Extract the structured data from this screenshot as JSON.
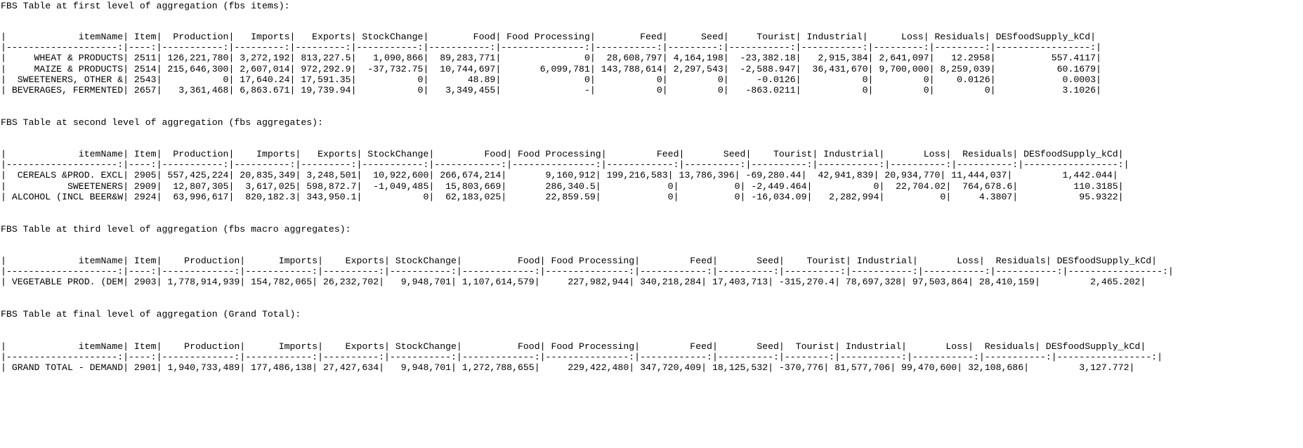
{
  "sections": [
    {
      "heading": "FBS Table at first level of aggregation (fbs items):",
      "header": "|             itemName| Item|  Production|   Imports|   Exports| StockChange|        Food| Food Processing|        Feed|      Seed|     Tourist| Industrial|      Loss| Residuals| DESfoodSupply_kCd|",
      "separator": "|--------------------:|----:|-----------:|---------:|---------:|-----------:|-----------:|---------------:|-----------:|---------:|-----------:|-----------:|---------:|---------:|-----------------:|",
      "rows": [
        "|     WHEAT & PRODUCTS| 2511| 126,221,780| 3,272,192| 813,227.5|   1,090,866|  89,283,771|               0|  28,608,797| 4,164,198|  -23,382.18|   2,915,384| 2,641,097|   12.2958|          557.4117|",
        "|     MAIZE & PRODUCTS| 2514| 215,646,300| 2,607,014| 972,292.9|  -37,732.75|  10,744,697|       6,099,781| 143,788,614| 2,297,543|  -2,588.947|  36,431,670| 9,700,000| 8,259,039|           60.1679|",
        "|  SWEETENERS, OTHER &| 2543|           0| 17,640.24| 17,591.35|           0|       48.89|               0|           0|         0|     -0.0126|           0|         0|    0.0126|            0.0003|",
        "| BEVERAGES, FERMENTED| 2657|   3,361,468| 6,863.671| 19,739.94|           0|   3,349,455|               -|           0|         0|   -863.0211|           0|         0|         0|            3.1026|"
      ]
    },
    {
      "heading": "FBS Table at second level of aggregation (fbs aggregates):",
      "header": "|             itemName| Item|  Production|    Imports|   Exports| StockChange|         Food| Food Processing|         Feed|       Seed|    Tourist| Industrial|       Loss|  Residuals| DESfoodSupply_kCd|",
      "separator": "|--------------------:|----:|-----------:|----------:|---------:|-----------:|------------:|---------------:|------------:|----------:|----------:|-----------:|----------:|----------:|-----------------:|",
      "rows": [
        "|  CEREALS &PROD. EXCL| 2905| 557,425,224| 20,835,349| 3,248,501|  10,922,600| 266,674,214|       9,160,912| 199,216,583| 13,786,396| -69,280.44|  42,941,839| 20,934,770| 11,444,037|         1,442.044|",
        "|           SWEETENERS| 2909|  12,807,305|  3,617,025| 598,872.7|  -1,049,485|  15,803,669|       286,340.5|            0|          0| -2,449.464|           0|  22,704.02|  764,678.6|          110.3185|",
        "| ALCOHOL (INCL BEER&W| 2924|  63,996,617|  820,182.3| 343,950.1|           0|  62,183,025|       22,859.59|            0|          0| -16,034.09|   2,282,994|          0|     4.3807|           95.9322|"
      ]
    },
    {
      "heading": "FBS Table at third level of aggregation (fbs macro aggregates):",
      "header": "|             itemName| Item|    Production|      Imports|    Exports| StockChange|          Food| Food Processing|         Feed|       Seed|    Tourist| Industrial|       Loss|  Residuals| DESfoodSupply_kCd|",
      "separator": "|--------------------:|----:|-------------:|------------:|----------:|-----------:|-------------:|---------------:|------------:|----------:|----------:|-----------:|-----------:|-----------:|-----------------:|",
      "rows": [
        "| VEGETABLE PROD. (DEM| 2903| 1,778,914,939| 154,782,065| 26,232,702|   9,948,701| 1,107,614,579|     227,982,944| 340,218,284| 17,403,713| -315,270.4| 78,697,328| 97,503,864| 28,410,159|         2,465.202|"
      ]
    },
    {
      "heading": "FBS Table at final level of aggregation (Grand Total):",
      "header": "|             itemName| Item|    Production|      Imports|    Exports| StockChange|          Food| Food Processing|         Feed|       Seed|  Tourist| Industrial|       Loss|  Residuals| DESfoodSupply_kCd|",
      "separator": "|--------------------:|----:|-------------:|------------:|----------:|-----------:|-------------:|---------------:|------------:|----------:|--------:|-----------:|-----------:|-----------:|-----------------:|",
      "rows": [
        "| GRAND TOTAL - DEMAND| 2901| 1,940,733,489| 177,486,138| 27,427,634|   9,948,701| 1,272,788,655|     229,422,480| 347,720,409| 18,125,532| -370,776| 81,577,706| 99,470,600| 32,108,686|         3,127.772|"
      ]
    }
  ]
}
